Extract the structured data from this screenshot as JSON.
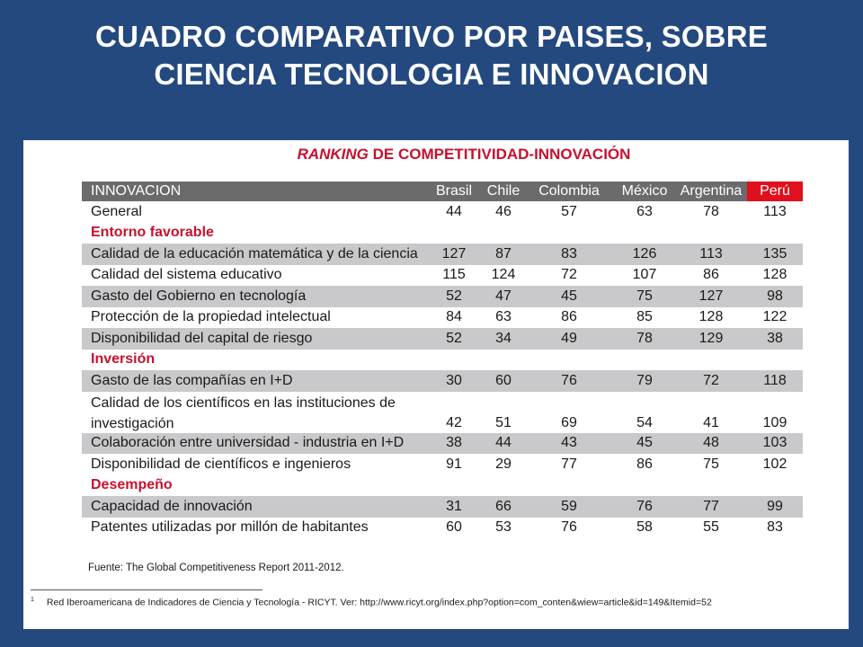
{
  "slide": {
    "title_line1": "CUADRO COMPARATIVO POR PAISES, SOBRE",
    "title_line2": "CIENCIA TECNOLOGIA E INNOVACION"
  },
  "table": {
    "title_italic": "RANKING",
    "title_rest": " DE COMPETITIVIDAD-INNOVACIÓN",
    "header": {
      "label": "INNOVACION",
      "countries": [
        "Brasil",
        "Chile",
        "Colombia",
        "México",
        "Argentina",
        "Perú"
      ]
    },
    "rows": [
      {
        "label": "General",
        "values": [
          "44",
          "46",
          "57",
          "63",
          "78",
          "113"
        ]
      },
      {
        "label": "Entorno favorable"
      },
      {
        "label": "Calidad de la educación matemática y de la ciencia",
        "values": [
          "127",
          "87",
          "83",
          "126",
          "113",
          "135"
        ]
      },
      {
        "label": "Calidad del sistema educativo",
        "values": [
          "115",
          "124",
          "72",
          "107",
          "86",
          "128"
        ]
      },
      {
        "label": "Gasto del Gobierno en tecnología",
        "values": [
          "52",
          "47",
          "45",
          "75",
          "127",
          "98"
        ]
      },
      {
        "label": "Protección de la propiedad intelectual",
        "values": [
          "84",
          "63",
          "86",
          "85",
          "128",
          "122"
        ]
      },
      {
        "label": "Disponibilidad del capital de riesgo",
        "values": [
          "52",
          "34",
          "49",
          "78",
          "129",
          "38"
        ]
      },
      {
        "label": "Inversión"
      },
      {
        "label": "Gasto de las compañías en I+D",
        "values": [
          "30",
          "60",
          "76",
          "79",
          "72",
          "118"
        ]
      },
      {
        "label": "Calidad de los científicos en las instituciones de investigación",
        "values": [
          "42",
          "51",
          "69",
          "54",
          "41",
          "109"
        ]
      },
      {
        "label": "Colaboración entre universidad - industria en I+D",
        "values": [
          "38",
          "44",
          "43",
          "45",
          "48",
          "103"
        ]
      },
      {
        "label": "Disponibilidad de científicos e ingenieros",
        "values": [
          "91",
          "29",
          "77",
          "86",
          "75",
          "102"
        ]
      },
      {
        "label": "Desempeño"
      },
      {
        "label": "Capacidad de innovación",
        "values": [
          "31",
          "66",
          "59",
          "76",
          "77",
          "99"
        ]
      },
      {
        "label": "Patentes utilizadas por millón de habitantes",
        "values": [
          "60",
          "53",
          "76",
          "58",
          "55",
          "83"
        ]
      }
    ],
    "source": "Fuente: The Global Competitiveness Report 2011-2012."
  },
  "footnote": {
    "marker": "1",
    "text": "Red Iberoamericana de Indicadores de Ciencia y Tecnología - RICYT. Ver: http://www.ricyt.org/index.php?option=com_conten&wiew=article&id=149&Itemid=52"
  },
  "colors": {
    "background": "#24497f",
    "accent_red": "#c8102e",
    "header_gray": "#6b6b6d",
    "row_shade": "#c9c9cb"
  }
}
